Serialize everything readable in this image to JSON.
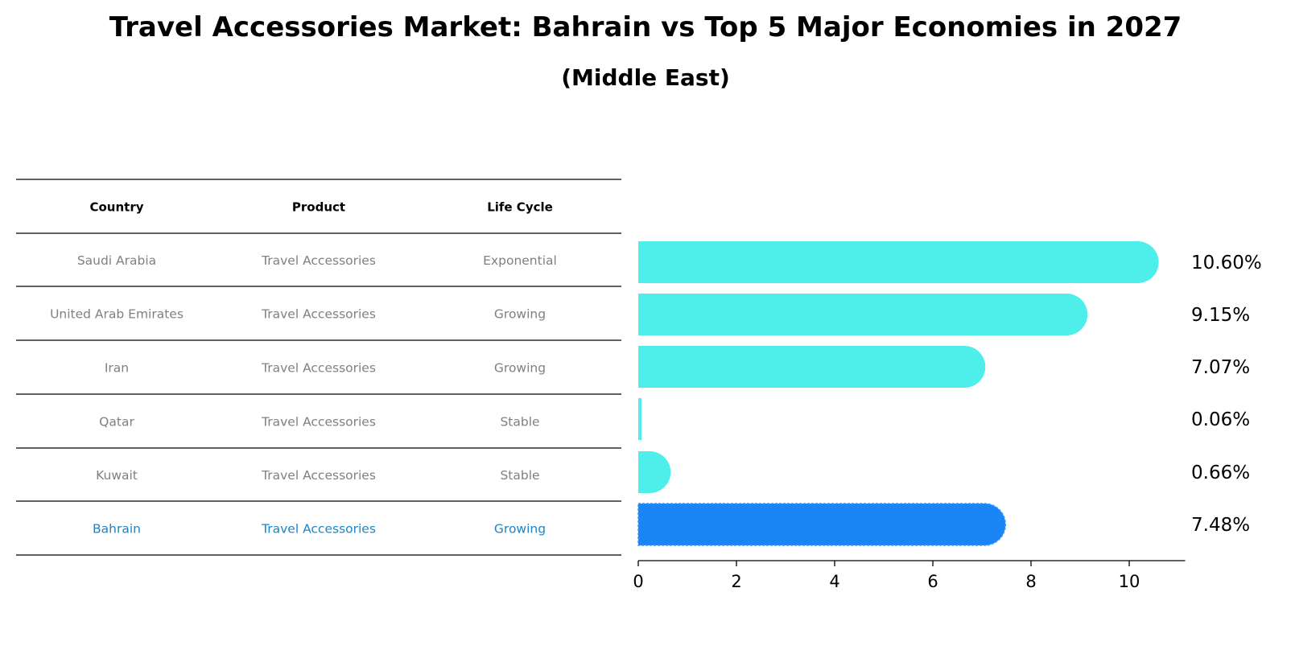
{
  "title": "Travel Accessories Market: Bahrain vs Top 5 Major Economies in 2027",
  "subtitle": "(Middle East)",
  "table": {
    "headers": [
      "Country",
      "Product",
      "Life Cycle"
    ],
    "rows": [
      {
        "country": "Saudi Arabia",
        "product": "Travel Accessories",
        "life_cycle": "Exponential",
        "highlight": false
      },
      {
        "country": "United Arab Emirates",
        "product": "Travel Accessories",
        "life_cycle": "Growing",
        "highlight": false
      },
      {
        "country": "Iran",
        "product": "Travel Accessories",
        "life_cycle": "Growing",
        "highlight": false
      },
      {
        "country": "Qatar",
        "product": "Travel Accessories",
        "life_cycle": "Stable",
        "highlight": false
      },
      {
        "country": "Kuwait",
        "product": "Travel Accessories",
        "life_cycle": "Stable",
        "highlight": false
      },
      {
        "country": "Bahrain",
        "product": "Travel Accessories",
        "life_cycle": "Growing",
        "highlight": true
      }
    ]
  },
  "colors": {
    "bar": "#4eeeea",
    "highlight_bar": "#1a85f5",
    "highlight_text": "#1a85c8",
    "muted_text": "#808080"
  },
  "chart_data": {
    "type": "bar",
    "orientation": "horizontal",
    "categories": [
      "Saudi Arabia",
      "United Arab Emirates",
      "Iran",
      "Qatar",
      "Kuwait",
      "Bahrain"
    ],
    "values": [
      10.6,
      9.15,
      7.07,
      0.06,
      0.66,
      7.48
    ],
    "value_labels": [
      "10.60%",
      "9.15%",
      "7.07%",
      "0.06%",
      "0.66%",
      "7.48%"
    ],
    "highlight_index": 5,
    "xlim": [
      0,
      11.14
    ],
    "xticks": [
      0,
      2,
      4,
      6,
      8,
      10
    ],
    "grid": false,
    "legend": "none"
  }
}
